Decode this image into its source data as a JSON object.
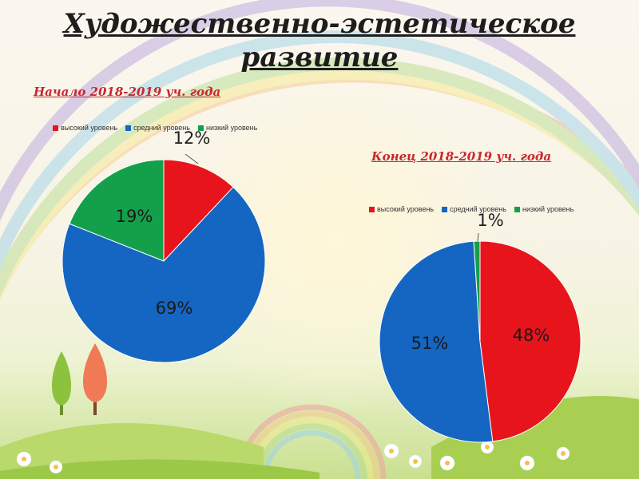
{
  "title_line1": "Художественно-эстетическое",
  "title_line2": "развитие",
  "colors": {
    "high": "#e8141b",
    "mid": "#1466c2",
    "low": "#14a04a"
  },
  "chart_data": [
    {
      "type": "pie",
      "title": "Начало 2018-2019 уч. года",
      "legend": [
        "высокий уровень",
        "средний уровень",
        "низкий уровень"
      ],
      "legend_position": "top",
      "values": [
        12,
        69,
        19
      ],
      "labels": [
        "12%",
        "69%",
        "19%"
      ]
    },
    {
      "type": "pie",
      "title": "Конец 2018-2019 уч. года",
      "legend": [
        "высокий уровень",
        "средний уровень",
        "низкий уровень"
      ],
      "legend_position": "top",
      "values": [
        48,
        51,
        1
      ],
      "labels": [
        "48%",
        "51%",
        "1%"
      ]
    }
  ]
}
